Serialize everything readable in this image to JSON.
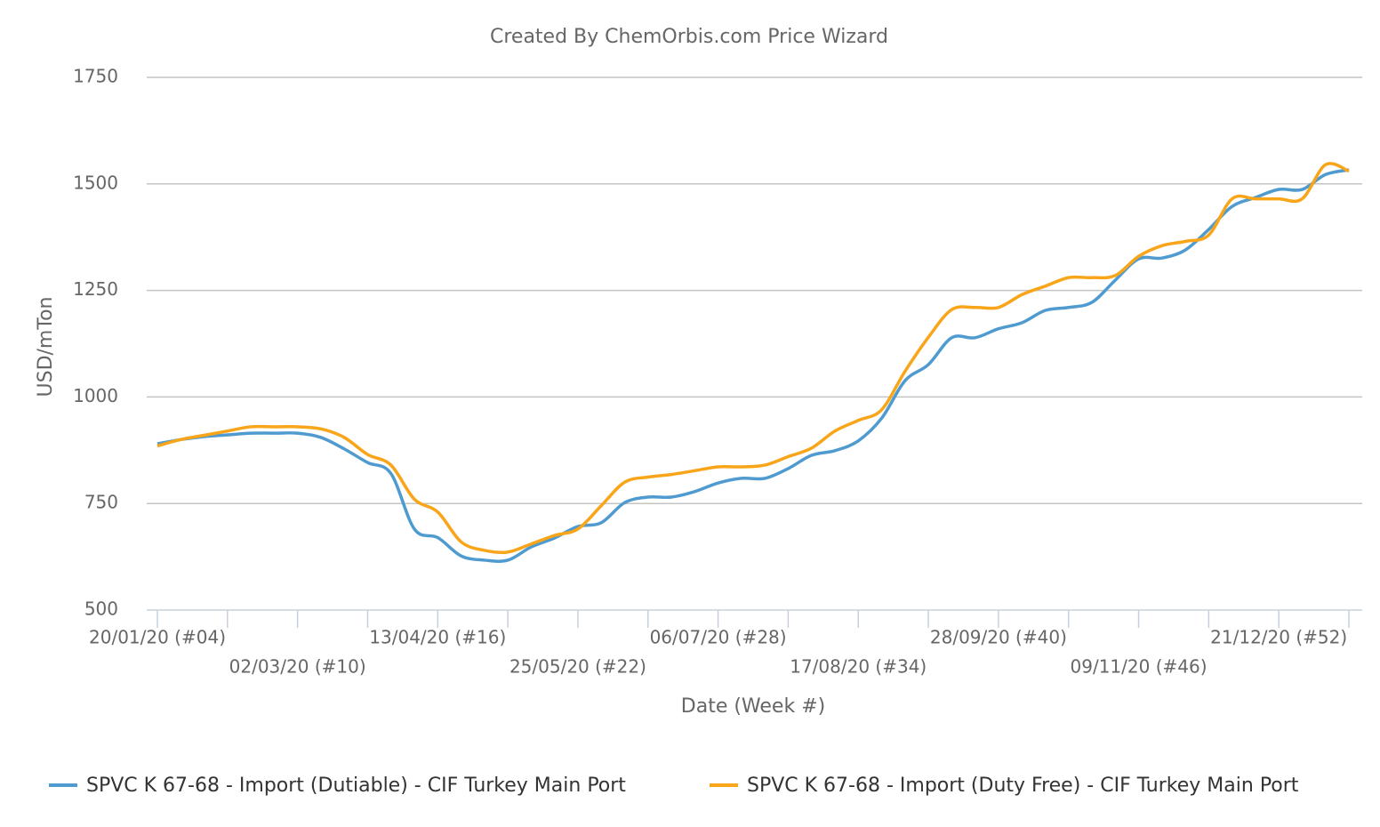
{
  "chart_data": {
    "type": "line",
    "title": "Created By ChemOrbis.com Price Wizard",
    "y_label": "USD/mTon",
    "x_label": "Date (Week #)",
    "categories": [
      "20/01/20 (#04)",
      null,
      null,
      null,
      null,
      null,
      "02/03/20 (#10)",
      null,
      null,
      null,
      null,
      null,
      "13/04/20 (#16)",
      null,
      null,
      null,
      null,
      null,
      "25/05/20 (#22)",
      null,
      null,
      null,
      null,
      null,
      "06/07/20 (#28)",
      null,
      null,
      null,
      null,
      null,
      "17/08/20 (#34)",
      null,
      null,
      null,
      null,
      null,
      "28/09/20 (#40)",
      null,
      null,
      null,
      null,
      null,
      "09/11/20 (#46)",
      null,
      null,
      null,
      null,
      null,
      "21/12/20 (#52)",
      null,
      null,
      null
    ],
    "series": [
      {
        "name": "SPVC K 67-68 - Import (Dutiable) - CIF Turkey Main Port",
        "color": "#4f9bd0",
        "values": [
          890,
          900,
          907,
          911,
          915,
          915,
          915,
          905,
          878,
          846,
          820,
          690,
          670,
          627,
          617,
          617,
          648,
          669,
          696,
          705,
          752,
          765,
          765,
          778,
          798,
          809,
          809,
          832,
          863,
          874,
          897,
          950,
          1038,
          1076,
          1139,
          1139,
          1160,
          1174,
          1203,
          1210,
          1222,
          1274,
          1324,
          1326,
          1345,
          1393,
          1447,
          1468,
          1487,
          1487,
          1522,
          1533
        ]
      },
      {
        "name": "SPVC K 67-68 - Import (Duty Free) - CIF Turkey Main Port",
        "color": "#f9a51a",
        "values": [
          885,
          900,
          910,
          920,
          930,
          930,
          930,
          925,
          905,
          865,
          840,
          760,
          730,
          660,
          640,
          636,
          655,
          675,
          690,
          745,
          800,
          812,
          818,
          827,
          836,
          836,
          840,
          860,
          880,
          920,
          945,
          970,
          1060,
          1140,
          1205,
          1210,
          1210,
          1240,
          1260,
          1280,
          1280,
          1285,
          1330,
          1355,
          1365,
          1380,
          1465,
          1465,
          1465,
          1465,
          1545,
          1530
        ]
      }
    ],
    "ylim": [
      500,
      1750
    ],
    "yticks": [
      500,
      750,
      1000,
      1250,
      1500,
      1750
    ],
    "grid": true,
    "legend": "bottom"
  }
}
